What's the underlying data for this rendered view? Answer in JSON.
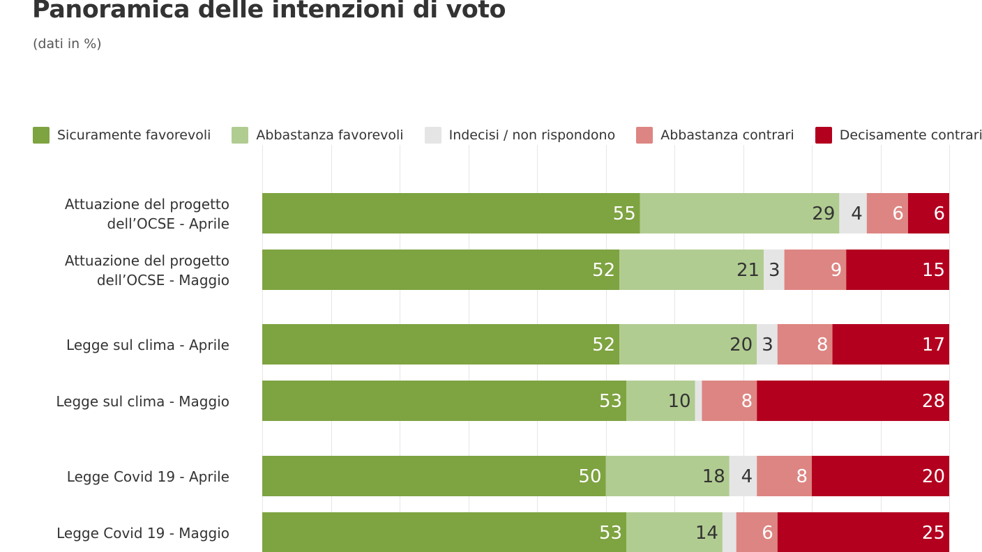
{
  "title": "Panoramica delle intenzioni di voto",
  "subtitle": "(dati in %)",
  "colors": {
    "sicuramente_favorevoli": "#7ea341",
    "abbastanza_favorevoli": "#b1cc91",
    "indecisi": "#e5e5e5",
    "abbastanza_contrari": "#dd8582",
    "decisamente_contrari": "#b3001f",
    "gridline": "#e6e6e6",
    "text_dark": "#333333",
    "text_light": "#ffffff"
  },
  "chart_data": {
    "type": "bar",
    "orientation": "horizontal",
    "stacked": true,
    "title": "Panoramica delle intenzioni di voto",
    "subtitle": "(dati in %)",
    "xlim": [
      0,
      100
    ],
    "grid": true,
    "legend_position": "top",
    "categories": [
      [
        "Attuazione del progetto",
        "dell’OCSE - Aprile"
      ],
      [
        "Attuazione del progetto",
        "dell’OCSE - Maggio"
      ],
      [
        "Legge sul clima - Aprile"
      ],
      [
        "Legge sul clima - Maggio"
      ],
      [
        "Legge Covid 19 - Aprile"
      ],
      [
        "Legge Covid 19 - Maggio"
      ]
    ],
    "series": [
      {
        "name": "Sicuramente favorevoli",
        "color_key": "sicuramente_favorevoli",
        "label_color": "text_light",
        "values": [
          55,
          52,
          52,
          53,
          50,
          53
        ],
        "labels": [
          "55",
          "52",
          "52",
          "53",
          "50",
          "53"
        ]
      },
      {
        "name": "Abbastanza favorevoli",
        "color_key": "abbastanza_favorevoli",
        "label_color": "text_dark",
        "values": [
          29,
          21,
          20,
          10,
          18,
          14
        ],
        "labels": [
          "29",
          "21",
          "20",
          "10",
          "18",
          "14"
        ]
      },
      {
        "name": "Indecisi / non rispondono",
        "color_key": "indecisi",
        "label_color": "text_dark",
        "values": [
          4,
          3,
          3,
          1,
          4,
          2
        ],
        "labels": [
          "4",
          "3",
          "3",
          "",
          "4",
          ""
        ]
      },
      {
        "name": "Abbastanza contrari",
        "color_key": "abbastanza_contrari",
        "label_color": "text_light",
        "values": [
          6,
          9,
          8,
          8,
          8,
          6
        ],
        "labels": [
          "6",
          "9",
          "8",
          "8",
          "8",
          "6"
        ]
      },
      {
        "name": "Decisamente contrari",
        "color_key": "decisamente_contrari",
        "label_color": "text_light",
        "values": [
          6,
          15,
          17,
          28,
          20,
          25
        ],
        "labels": [
          "6",
          "15",
          "17",
          "28",
          "20",
          "25"
        ]
      }
    ]
  }
}
